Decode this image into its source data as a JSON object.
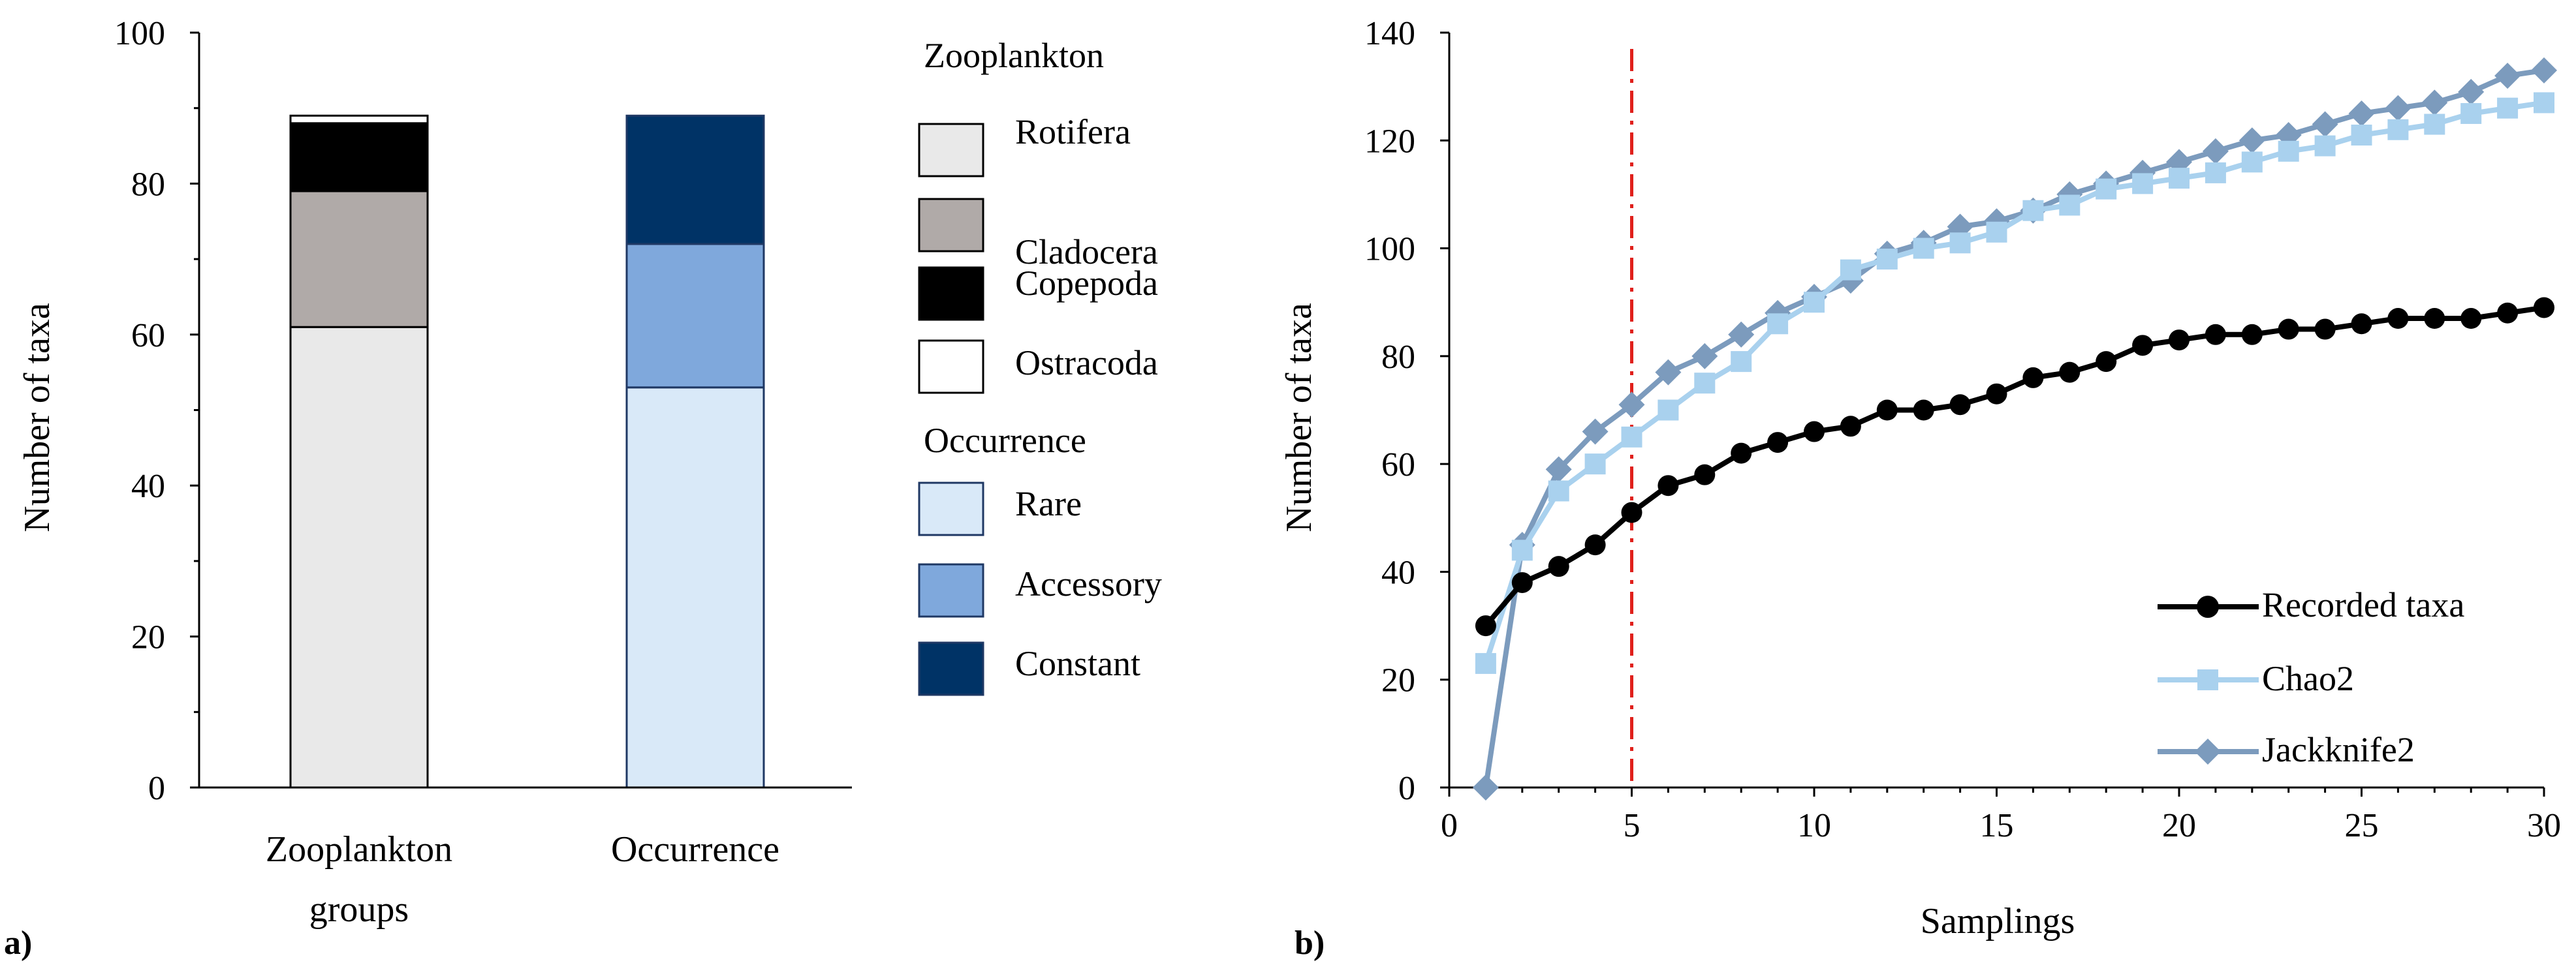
{
  "chart_data": [
    {
      "type": "bar",
      "stacked": true,
      "panel_label": "a)",
      "ylabel": "Number of taxa",
      "ylim": [
        0,
        100
      ],
      "yticks": [
        "0",
        "20",
        "40",
        "60",
        "80",
        "100"
      ],
      "categories": [
        {
          "line1": "Zooplankton",
          "line2": "groups"
        },
        {
          "line1": "Occurrence",
          "line2": ""
        }
      ],
      "stacks": [
        {
          "name": "Zooplankton",
          "segments": [
            {
              "name": "Rotifera",
              "value": 61,
              "color": "#e9e9e9"
            },
            {
              "name": "Cladocera",
              "value": 18,
              "color": "#b0aaa8"
            },
            {
              "name": "Copepoda",
              "value": 9,
              "color": "#000000"
            },
            {
              "name": "Ostracoda",
              "value": 1,
              "color": "#ffffff"
            }
          ]
        },
        {
          "name": "Occurrence",
          "segments": [
            {
              "name": "Rare",
              "value": 53,
              "color": "#d9e9f8"
            },
            {
              "name": "Accessory",
              "value": 19,
              "color": "#7fa8dc"
            },
            {
              "name": "Constant",
              "value": 17,
              "color": "#003366"
            }
          ]
        }
      ],
      "legend": {
        "group1_title": "Zooplankton",
        "group1": [
          {
            "label": "Rotifera",
            "color": "#e9e9e9"
          },
          {
            "label": "Cladocera",
            "color": "#b0aaa8"
          },
          {
            "label": "Copepoda",
            "color": "#000000"
          },
          {
            "label": "Ostracoda",
            "color": "#ffffff"
          }
        ],
        "group2_title": "Occurrence",
        "group2": [
          {
            "label": "Rare",
            "color": "#d9e9f8"
          },
          {
            "label": "Accessory",
            "color": "#7fa8dc"
          },
          {
            "label": "Constant",
            "color": "#003366"
          }
        ]
      }
    },
    {
      "type": "line",
      "panel_label": "b)",
      "xlabel": "Samplings",
      "ylabel": "Number of taxa",
      "xlim": [
        0,
        30
      ],
      "ylim": [
        0,
        140
      ],
      "xticks": [
        "0",
        "5",
        "10",
        "15",
        "20",
        "25",
        "30"
      ],
      "yticks": [
        "0",
        "20",
        "40",
        "60",
        "80",
        "100",
        "120",
        "140"
      ],
      "reference_line_x": 5,
      "reference_line_color": "#e0201b",
      "x": [
        1,
        2,
        3,
        4,
        5,
        6,
        7,
        8,
        9,
        10,
        11,
        12,
        13,
        14,
        15,
        16,
        17,
        18,
        19,
        20,
        21,
        22,
        23,
        24,
        25,
        26,
        27,
        28,
        29,
        30
      ],
      "series": [
        {
          "name": "Recorded taxa",
          "color": "#000000",
          "marker": "circle",
          "values": [
            30,
            38,
            41,
            45,
            51,
            56,
            58,
            62,
            64,
            66,
            67,
            70,
            70,
            71,
            73,
            76,
            77,
            79,
            82,
            83,
            84,
            84,
            85,
            85,
            86,
            87,
            87,
            87,
            88,
            89
          ]
        },
        {
          "name": "Chao2",
          "color": "#a9d1ee",
          "marker": "square",
          "values": [
            23,
            44,
            55,
            60,
            65,
            70,
            75,
            79,
            86,
            90,
            96,
            98,
            100,
            101,
            103,
            107,
            108,
            111,
            112,
            113,
            114,
            116,
            118,
            119,
            121,
            122,
            123,
            125,
            126,
            127
          ]
        },
        {
          "name": "Jackknife2",
          "color": "#7c9bbd",
          "marker": "diamond",
          "values": [
            0,
            45,
            59,
            66,
            71,
            77,
            80,
            84,
            88,
            91,
            94,
            99,
            101,
            104,
            105,
            107,
            110,
            112,
            114,
            116,
            118,
            120,
            121,
            123,
            125,
            126,
            127,
            129,
            132,
            133
          ]
        }
      ],
      "legend": [
        {
          "label": "Recorded taxa"
        },
        {
          "label": "Chao2"
        },
        {
          "label": "Jackknife2"
        }
      ]
    }
  ]
}
